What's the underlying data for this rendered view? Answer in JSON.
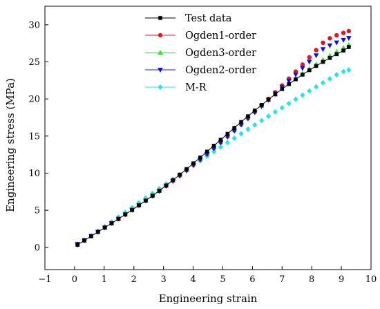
{
  "chart_data": {
    "type": "scatter",
    "xlabel": "Engineering strain",
    "ylabel": "Engineering stress (MPa)",
    "xlim": [
      -1,
      10
    ],
    "ylim": [
      -3,
      32.5
    ],
    "xticks": [
      -1,
      0,
      1,
      2,
      3,
      4,
      5,
      6,
      7,
      8,
      9,
      10
    ],
    "yticks": [
      0,
      5,
      10,
      15,
      20,
      25,
      30
    ],
    "legend_position": "top-center",
    "grid": false,
    "series": [
      {
        "name": "Test data",
        "color": "#000000",
        "marker": "square",
        "line": true,
        "x": [
          0.1,
          0.33,
          0.56,
          0.79,
          1.02,
          1.25,
          1.48,
          1.71,
          1.94,
          2.17,
          2.4,
          2.63,
          2.86,
          3.09,
          3.32,
          3.55,
          3.78,
          4.01,
          4.24,
          4.47,
          4.7,
          4.93,
          5.16,
          5.39,
          5.62,
          5.85,
          6.08,
          6.31,
          6.54,
          6.77,
          7.0,
          7.23,
          7.46,
          7.69,
          7.92,
          8.15,
          8.38,
          8.61,
          8.84,
          9.07,
          9.25
        ],
        "y": [
          0.35,
          0.92,
          1.5,
          2.08,
          2.66,
          3.24,
          3.83,
          4.43,
          5.04,
          5.66,
          6.3,
          6.96,
          7.64,
          8.34,
          9.06,
          9.8,
          10.55,
          11.33,
          12.11,
          12.9,
          13.7,
          14.5,
          15.3,
          16.1,
          16.89,
          17.67,
          18.44,
          19.19,
          19.93,
          20.64,
          21.34,
          22.01,
          22.65,
          23.28,
          23.88,
          24.45,
          25.0,
          25.53,
          26.04,
          26.53,
          27.0
        ]
      },
      {
        "name": "Ogden1-order",
        "color": "#e8141c",
        "marker": "circle",
        "line": false,
        "x": [
          0.1,
          0.33,
          0.56,
          0.79,
          1.02,
          1.25,
          1.48,
          1.71,
          1.94,
          2.17,
          2.4,
          2.63,
          2.86,
          3.09,
          3.32,
          3.55,
          3.78,
          4.01,
          4.24,
          4.47,
          4.7,
          4.93,
          5.16,
          5.39,
          5.62,
          5.85,
          6.08,
          6.31,
          6.54,
          6.77,
          7.0,
          7.23,
          7.46,
          7.69,
          7.92,
          8.15,
          8.38,
          8.61,
          8.84,
          9.07,
          9.25
        ],
        "y": [
          0.45,
          0.98,
          1.53,
          2.09,
          2.66,
          3.24,
          3.83,
          4.43,
          5.04,
          5.66,
          6.3,
          6.94,
          7.6,
          8.27,
          8.96,
          9.66,
          10.37,
          11.1,
          11.84,
          12.59,
          13.36,
          14.14,
          14.94,
          15.75,
          16.57,
          17.41,
          18.26,
          19.13,
          20.01,
          20.91,
          21.82,
          22.75,
          23.69,
          24.64,
          25.61,
          26.59,
          27.58,
          28.18,
          28.58,
          28.9,
          29.15
        ]
      },
      {
        "name": "Ogden3-order",
        "color": "#2ee82e",
        "marker": "triangle-up",
        "line": false,
        "x": [
          0.1,
          0.33,
          0.56,
          0.79,
          1.02,
          1.25,
          1.48,
          1.71,
          1.94,
          2.17,
          2.4,
          2.63,
          2.86,
          3.09,
          3.32,
          3.55,
          3.78,
          4.01,
          4.24,
          4.47,
          4.7,
          4.93,
          5.16,
          5.39,
          5.62,
          5.85,
          6.08,
          6.31,
          6.54,
          6.77,
          7.0,
          7.23,
          7.46,
          7.69,
          7.92,
          8.15,
          8.38,
          8.61,
          8.84,
          9.07,
          9.25
        ],
        "y": [
          0.4,
          0.95,
          1.51,
          2.08,
          2.66,
          3.24,
          3.84,
          4.44,
          5.05,
          5.67,
          6.31,
          6.96,
          7.63,
          8.32,
          9.02,
          9.75,
          10.49,
          11.25,
          12.02,
          12.8,
          13.59,
          14.38,
          15.18,
          15.98,
          16.77,
          17.56,
          18.34,
          19.11,
          19.87,
          20.61,
          21.34,
          22.05,
          22.74,
          23.41,
          24.06,
          24.68,
          25.28,
          25.86,
          26.4,
          26.9,
          27.3
        ]
      },
      {
        "name": "Ogden2-order",
        "color": "#1010e0",
        "marker": "triangle-down",
        "line": false,
        "x": [
          0.1,
          0.33,
          0.56,
          0.79,
          1.02,
          1.25,
          1.48,
          1.71,
          1.94,
          2.17,
          2.4,
          2.63,
          2.86,
          3.09,
          3.32,
          3.55,
          3.78,
          4.01,
          4.24,
          4.47,
          4.7,
          4.93,
          5.16,
          5.39,
          5.62,
          5.85,
          6.08,
          6.31,
          6.54,
          6.77,
          7.0,
          7.23,
          7.46,
          7.69,
          7.92,
          8.15,
          8.38,
          8.61,
          8.84,
          9.07,
          9.25
        ],
        "y": [
          0.42,
          0.96,
          1.52,
          2.08,
          2.65,
          3.23,
          3.82,
          4.42,
          5.03,
          5.65,
          6.28,
          6.92,
          7.58,
          8.25,
          8.93,
          9.63,
          10.34,
          11.07,
          11.81,
          12.56,
          13.33,
          14.11,
          14.9,
          15.7,
          16.51,
          17.34,
          18.17,
          19.01,
          19.86,
          20.71,
          21.57,
          22.43,
          23.29,
          24.15,
          25.01,
          25.86,
          26.7,
          27.2,
          27.6,
          27.95,
          28.2
        ]
      },
      {
        "name": "M-R",
        "color": "#22e4ee",
        "marker": "diamond",
        "line": false,
        "x": [
          0.1,
          0.33,
          0.56,
          0.79,
          1.02,
          1.25,
          1.48,
          1.71,
          1.94,
          2.17,
          2.4,
          2.63,
          2.86,
          3.09,
          3.32,
          3.55,
          3.78,
          4.01,
          4.24,
          4.47,
          4.7,
          4.93,
          5.16,
          5.39,
          5.62,
          5.85,
          6.08,
          6.31,
          6.54,
          6.77,
          7.0,
          7.23,
          7.46,
          7.69,
          7.92,
          8.15,
          8.38,
          8.61,
          8.84,
          9.07,
          9.25
        ],
        "y": [
          0.3,
          0.92,
          1.54,
          2.17,
          2.8,
          3.43,
          4.07,
          4.71,
          5.35,
          5.99,
          6.63,
          7.27,
          7.91,
          8.54,
          9.17,
          9.8,
          10.43,
          11.05,
          11.67,
          12.29,
          12.9,
          13.51,
          14.12,
          14.72,
          15.32,
          15.91,
          16.5,
          17.09,
          17.67,
          18.25,
          18.82,
          19.39,
          19.96,
          20.52,
          21.08,
          21.63,
          22.18,
          22.72,
          23.26,
          23.7,
          23.9
        ]
      }
    ]
  }
}
